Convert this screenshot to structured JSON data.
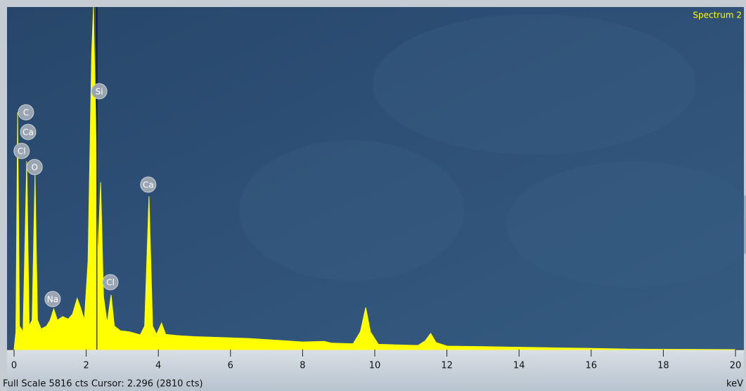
{
  "chart_data": {
    "type": "area",
    "title": "Spectrum 2",
    "x_unit": "keV",
    "status": "Full Scale 5816 cts Cursor: 2.296  (2810 cts)",
    "cursor": 2.296,
    "color": "#ffff00",
    "xlim": [
      0,
      20
    ],
    "ylim": [
      0,
      5816
    ],
    "xticks": [
      0,
      2,
      4,
      6,
      8,
      10,
      12,
      14,
      16,
      18,
      20
    ],
    "x": [
      0,
      0.05,
      0.1,
      0.15,
      0.25,
      0.35,
      0.42,
      0.5,
      0.58,
      0.65,
      0.75,
      0.9,
      1.0,
      1.1,
      1.2,
      1.35,
      1.5,
      1.62,
      1.75,
      1.85,
      1.95,
      2.05,
      2.15,
      2.2,
      2.26,
      2.32,
      2.4,
      2.48,
      2.58,
      2.69,
      2.78,
      2.95,
      3.2,
      3.5,
      3.62,
      3.74,
      3.84,
      3.95,
      4.09,
      4.2,
      4.5,
      5,
      5.5,
      6,
      6.5,
      7,
      7.5,
      8,
      8.6,
      8.8,
      9.4,
      9.6,
      9.75,
      9.88,
      10.1,
      10.6,
      11.2,
      11.4,
      11.55,
      11.7,
      12,
      13,
      14,
      15,
      16,
      17,
      18,
      19,
      20
    ],
    "values": [
      0,
      300,
      4030,
      400,
      300,
      3200,
      400,
      500,
      2960,
      500,
      350,
      400,
      500,
      690,
      500,
      560,
      520,
      600,
      870,
      700,
      500,
      1500,
      5000,
      5816,
      4000,
      1500,
      2840,
      900,
      450,
      930,
      400,
      320,
      300,
      250,
      400,
      2600,
      400,
      260,
      450,
      260,
      240,
      220,
      210,
      200,
      190,
      170,
      150,
      130,
      140,
      110,
      100,
      300,
      715,
      300,
      90,
      80,
      70,
      150,
      275,
      120,
      60,
      50,
      40,
      30,
      20,
      10,
      5,
      3,
      0
    ],
    "annotations": [
      {
        "text": "C",
        "x": 0.33,
        "y": 4028
      },
      {
        "text": "Ca",
        "x": 0.39,
        "y": 3695
      },
      {
        "text": "Cl",
        "x": 0.21,
        "y": 3373
      },
      {
        "text": "O",
        "x": 0.57,
        "y": 3099
      },
      {
        "text": "Na",
        "x": 1.07,
        "y": 858
      },
      {
        "text": "Si",
        "x": 2.36,
        "y": 4386
      },
      {
        "text": "Cl",
        "x": 2.67,
        "y": 1144
      },
      {
        "text": "Ca",
        "x": 3.72,
        "y": 2801
      }
    ]
  }
}
